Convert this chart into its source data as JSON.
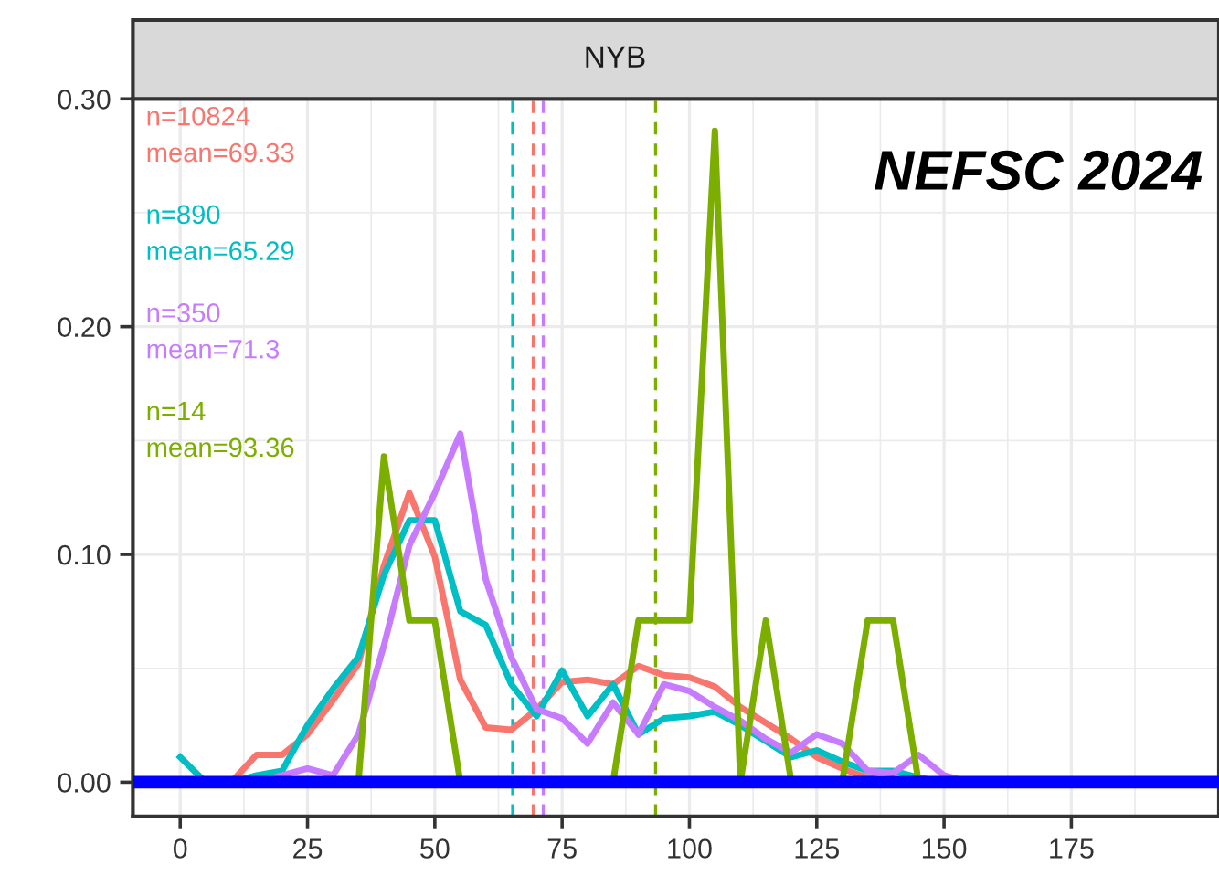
{
  "chart_data": {
    "type": "line",
    "title": "NYB",
    "annotations": [
      "NEFSC 2024"
    ],
    "series": [
      {
        "color": "#f8766d",
        "x": [
          10,
          15,
          20,
          25,
          30,
          35,
          40,
          45,
          50,
          55,
          60,
          65,
          70,
          75,
          80,
          85,
          90,
          95,
          100,
          105,
          110,
          115,
          120,
          125,
          130,
          135,
          140
        ],
        "values": [
          0,
          0.012,
          0.012,
          0.021,
          0.036,
          0.052,
          0.095,
          0.127,
          0.099,
          0.045,
          0.024,
          0.023,
          0.032,
          0.044,
          0.045,
          0.043,
          0.051,
          0.047,
          0.046,
          0.042,
          0.033,
          0.026,
          0.019,
          0.011,
          0.006,
          0.002,
          0
        ]
      },
      {
        "color": "#00bfc4",
        "x": [
          0,
          5,
          10,
          15,
          20,
          25,
          30,
          35,
          40,
          45,
          50,
          55,
          60,
          65,
          70,
          75,
          80,
          85,
          90,
          95,
          100,
          105,
          110,
          115,
          120,
          125,
          130,
          135,
          140,
          145,
          150
        ],
        "values": [
          0.011,
          0,
          0,
          0.003,
          0.005,
          0.025,
          0.041,
          0.055,
          0.091,
          0.115,
          0.115,
          0.075,
          0.069,
          0.043,
          0.029,
          0.049,
          0.029,
          0.043,
          0.021,
          0.028,
          0.029,
          0.031,
          0.025,
          0.018,
          0.011,
          0.014,
          0.009,
          0.005,
          0.005,
          0.002,
          0
        ]
      },
      {
        "color": "#c77cff",
        "x": [
          15,
          20,
          25,
          30,
          35,
          40,
          45,
          50,
          55,
          60,
          65,
          70,
          75,
          80,
          85,
          90,
          95,
          100,
          105,
          110,
          115,
          120,
          125,
          130,
          135,
          140,
          145,
          150,
          155
        ],
        "values": [
          0,
          0.003,
          0.006,
          0.003,
          0.021,
          0.06,
          0.104,
          0.127,
          0.153,
          0.089,
          0.055,
          0.032,
          0.028,
          0.017,
          0.035,
          0.021,
          0.043,
          0.04,
          0.033,
          0.027,
          0.019,
          0.013,
          0.021,
          0.017,
          0.005,
          0.004,
          0.012,
          0.003,
          0
        ]
      },
      {
        "color": "#7cae00",
        "x": [
          35,
          40,
          45,
          50,
          55,
          60,
          65,
          70,
          75,
          80,
          85,
          90,
          95,
          100,
          105,
          110,
          115,
          120,
          125,
          130,
          135,
          140,
          145
        ],
        "values": [
          0,
          0.143,
          0.071,
          0.071,
          0,
          0,
          0,
          0,
          0,
          0,
          0,
          0.071,
          0.071,
          0.071,
          0.286,
          0,
          0.071,
          0,
          0,
          0,
          0.071,
          0.071,
          0
        ]
      }
    ],
    "ref_lines": [
      {
        "axis": "x",
        "value": 69.33,
        "label": "n=10824\nmean=69.33",
        "color": "#f8766d",
        "line_style": "dashed"
      },
      {
        "axis": "x",
        "value": 65.29,
        "label": "n=890\nmean=65.29",
        "color": "#00bfc4",
        "line_style": "dashed"
      },
      {
        "axis": "x",
        "value": 71.3,
        "label": "n=350\nmean=71.3",
        "color": "#c77cff",
        "line_style": "dashed"
      },
      {
        "axis": "x",
        "value": 93.36,
        "label": "n=14\nmean=93.36",
        "color": "#7cae00",
        "line_style": "dashed"
      },
      {
        "axis": "y",
        "value": 0,
        "color": "#0000ff",
        "line_style": "solid"
      }
    ],
    "xlim": [
      -9.3,
      204
    ],
    "xticks": [
      0,
      25,
      50,
      75,
      100,
      125,
      150,
      175
    ],
    "ylim": [
      -0.015,
      0.3
    ],
    "yticks": [
      {
        "value": 0,
        "label": "0.00"
      },
      {
        "value": 0.1,
        "label": "0.10"
      },
      {
        "value": 0.2,
        "label": "0.20"
      },
      {
        "value": 0.3,
        "label": "0.30"
      }
    ],
    "grid": true,
    "marker": "none",
    "line_style": "solid"
  }
}
